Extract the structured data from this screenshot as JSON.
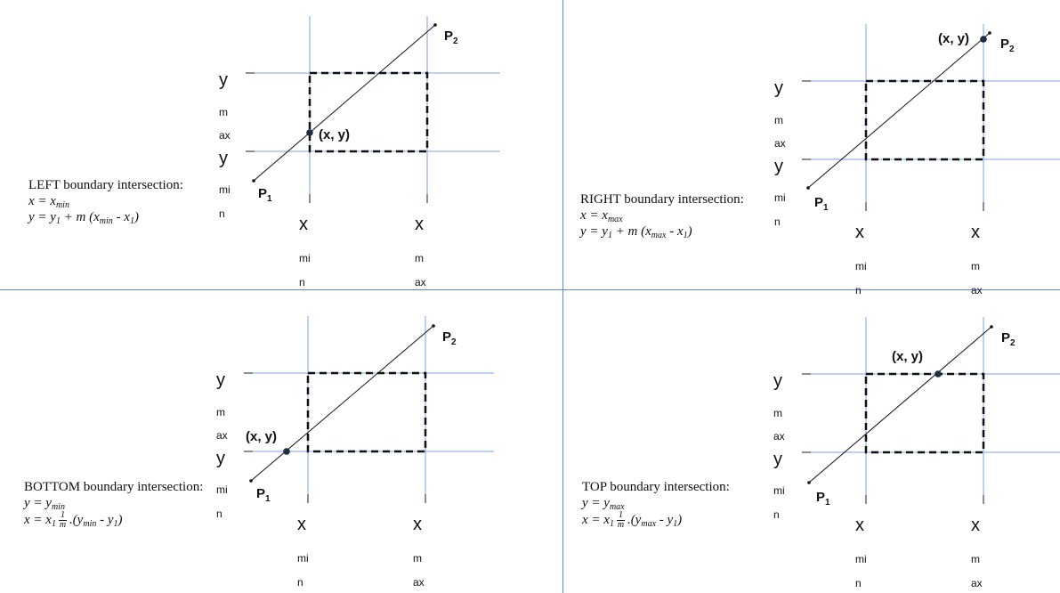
{
  "colors": {
    "grid": "#7ea3e8",
    "divider": "#5b8bd4",
    "ink": "#111111"
  },
  "labels": {
    "y": "y",
    "ymax_sub": [
      "m",
      "ax"
    ],
    "ymin_sub": [
      "mi",
      "n"
    ],
    "x": "x",
    "xmin_sub": [
      "mi",
      "n"
    ],
    "xmax_sub": [
      "m",
      "ax"
    ],
    "p1": "P",
    "p1_sub": "1",
    "p2": "P",
    "p2_sub": "2",
    "intersection": "(x, y)"
  },
  "panels": [
    {
      "id": "left",
      "title": "LEFT boundary intersection:",
      "eq1": {
        "lhs": "x = x",
        "sub": "min"
      },
      "eq2": {
        "a": "y = y",
        "a_sub": "1",
        "b": " + m (x",
        "b_sub": "min",
        "c": " - x",
        "c_sub": "1",
        "d": ")"
      }
    },
    {
      "id": "right",
      "title": "RIGHT boundary intersection:",
      "eq1": {
        "lhs": "x = x",
        "sub": "max"
      },
      "eq2": {
        "a": "y = y",
        "a_sub": "1",
        "b": " + m (x",
        "b_sub": "max",
        "c": " - x",
        "c_sub": "1",
        "d": ")"
      }
    },
    {
      "id": "bottom",
      "title": "BOTTOM boundary intersection:",
      "eq1": {
        "lhs": "y = y",
        "sub": "min"
      },
      "eq2": {
        "a": "x = x",
        "a_sub": "1",
        "frac_num": "1",
        "frac_den": "m",
        "b": ".(y",
        "b_sub": "min",
        "c": " - y",
        "c_sub": "1",
        "d": ")"
      }
    },
    {
      "id": "top",
      "title": "TOP boundary intersection:",
      "eq1": {
        "lhs": "y = y",
        "sub": "max"
      },
      "eq2": {
        "a": "x = x",
        "a_sub": "1",
        "frac_num": "1",
        "frac_den": "m",
        "b": ".(y",
        "b_sub": "max",
        "c": " - y",
        "c_sub": "1",
        "d": ")"
      }
    }
  ]
}
